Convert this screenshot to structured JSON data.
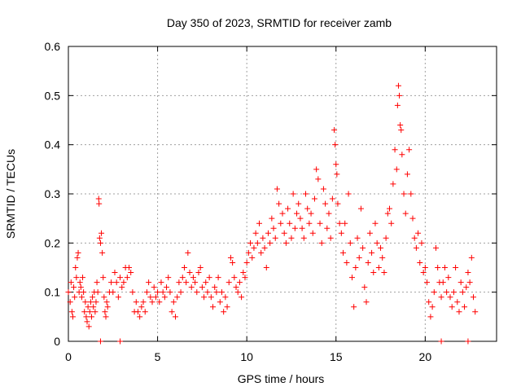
{
  "chart_data": {
    "type": "scatter",
    "title": "Day 350 of 2023, SRMTID for receiver zamb",
    "xlabel": "GPS time / hours",
    "ylabel": "SRMTID / TECUs",
    "xlim": [
      0,
      24
    ],
    "ylim": [
      0,
      0.6
    ],
    "xticks": [
      0,
      5,
      10,
      15,
      20
    ],
    "yticks": [
      0,
      0.1,
      0.2,
      0.3,
      0.4,
      0.5,
      0.6
    ],
    "grid": true,
    "marker": "+",
    "color": "#ff0000",
    "series": [
      {
        "name": "SRMTID",
        "points": [
          [
            0.0,
            0.1
          ],
          [
            0.1,
            0.08
          ],
          [
            0.15,
            0.12
          ],
          [
            0.2,
            0.06
          ],
          [
            0.25,
            0.05
          ],
          [
            0.3,
            0.11
          ],
          [
            0.35,
            0.09
          ],
          [
            0.4,
            0.15
          ],
          [
            0.45,
            0.13
          ],
          [
            0.5,
            0.17
          ],
          [
            0.55,
            0.18
          ],
          [
            0.6,
            0.1
          ],
          [
            0.65,
            0.12
          ],
          [
            0.7,
            0.11
          ],
          [
            0.75,
            0.09
          ],
          [
            0.8,
            0.13
          ],
          [
            0.85,
            0.1
          ],
          [
            0.9,
            0.06
          ],
          [
            0.95,
            0.08
          ],
          [
            1.0,
            0.05
          ],
          [
            1.05,
            0.04
          ],
          [
            1.1,
            0.07
          ],
          [
            1.15,
            0.03
          ],
          [
            1.2,
            0.06
          ],
          [
            1.25,
            0.08
          ],
          [
            1.3,
            0.05
          ],
          [
            1.35,
            0.09
          ],
          [
            1.4,
            0.07
          ],
          [
            1.45,
            0.1
          ],
          [
            1.5,
            0.06
          ],
          [
            1.55,
            0.08
          ],
          [
            1.6,
            0.12
          ],
          [
            1.65,
            0.1
          ],
          [
            1.7,
            0.29
          ],
          [
            1.72,
            0.28
          ],
          [
            1.75,
            0.21
          ],
          [
            1.8,
            0.2
          ],
          [
            1.85,
            0.22
          ],
          [
            1.9,
            0.18
          ],
          [
            1.95,
            0.13
          ],
          [
            2.0,
            0.09
          ],
          [
            2.05,
            0.06
          ],
          [
            2.1,
            0.05
          ],
          [
            2.15,
            0.08
          ],
          [
            2.2,
            0.07
          ],
          [
            2.3,
            0.1
          ],
          [
            2.4,
            0.12
          ],
          [
            2.5,
            0.1
          ],
          [
            2.6,
            0.14
          ],
          [
            2.7,
            0.12
          ],
          [
            2.8,
            0.09
          ],
          [
            2.9,
            0.13
          ],
          [
            3.0,
            0.11
          ],
          [
            3.1,
            0.12
          ],
          [
            3.2,
            0.15
          ],
          [
            3.3,
            0.13
          ],
          [
            3.4,
            0.15
          ],
          [
            3.5,
            0.14
          ],
          [
            3.6,
            0.1
          ],
          [
            3.7,
            0.06
          ],
          [
            3.8,
            0.08
          ],
          [
            3.9,
            0.06
          ],
          [
            4.0,
            0.05
          ],
          [
            4.1,
            0.07
          ],
          [
            4.2,
            0.08
          ],
          [
            4.3,
            0.06
          ],
          [
            4.4,
            0.1
          ],
          [
            4.5,
            0.12
          ],
          [
            4.6,
            0.09
          ],
          [
            4.7,
            0.08
          ],
          [
            4.8,
            0.11
          ],
          [
            4.9,
            0.09
          ],
          [
            5.0,
            0.1
          ],
          [
            5.1,
            0.08
          ],
          [
            5.2,
            0.12
          ],
          [
            5.3,
            0.1
          ],
          [
            5.4,
            0.09
          ],
          [
            5.5,
            0.11
          ],
          [
            5.6,
            0.13
          ],
          [
            5.7,
            0.1
          ],
          [
            5.8,
            0.06
          ],
          [
            5.9,
            0.08
          ],
          [
            6.0,
            0.05
          ],
          [
            6.1,
            0.09
          ],
          [
            6.2,
            0.12
          ],
          [
            6.3,
            0.1
          ],
          [
            6.4,
            0.13
          ],
          [
            6.5,
            0.15
          ],
          [
            6.6,
            0.12
          ],
          [
            6.7,
            0.18
          ],
          [
            6.8,
            0.14
          ],
          [
            6.9,
            0.11
          ],
          [
            7.0,
            0.13
          ],
          [
            7.1,
            0.12
          ],
          [
            7.2,
            0.1
          ],
          [
            7.3,
            0.14
          ],
          [
            7.4,
            0.15
          ],
          [
            7.5,
            0.11
          ],
          [
            7.6,
            0.09
          ],
          [
            7.7,
            0.12
          ],
          [
            7.8,
            0.1
          ],
          [
            7.9,
            0.13
          ],
          [
            8.0,
            0.09
          ],
          [
            8.1,
            0.07
          ],
          [
            8.2,
            0.11
          ],
          [
            8.3,
            0.1
          ],
          [
            8.4,
            0.13
          ],
          [
            8.5,
            0.08
          ],
          [
            8.6,
            0.1
          ],
          [
            8.7,
            0.06
          ],
          [
            8.8,
            0.09
          ],
          [
            8.9,
            0.07
          ],
          [
            9.0,
            0.12
          ],
          [
            9.1,
            0.17
          ],
          [
            9.2,
            0.16
          ],
          [
            9.3,
            0.13
          ],
          [
            9.4,
            0.11
          ],
          [
            9.5,
            0.1
          ],
          [
            9.6,
            0.12
          ],
          [
            9.7,
            0.09
          ],
          [
            9.8,
            0.14
          ],
          [
            9.9,
            0.13
          ],
          [
            10.0,
            0.16
          ],
          [
            10.1,
            0.18
          ],
          [
            10.2,
            0.2
          ],
          [
            10.3,
            0.17
          ],
          [
            10.4,
            0.19
          ],
          [
            10.5,
            0.22
          ],
          [
            10.6,
            0.2
          ],
          [
            10.7,
            0.24
          ],
          [
            10.8,
            0.18
          ],
          [
            10.9,
            0.21
          ],
          [
            11.0,
            0.19
          ],
          [
            11.1,
            0.15
          ],
          [
            11.2,
            0.22
          ],
          [
            11.3,
            0.2
          ],
          [
            11.4,
            0.25
          ],
          [
            11.5,
            0.23
          ],
          [
            11.6,
            0.21
          ],
          [
            11.7,
            0.31
          ],
          [
            11.8,
            0.28
          ],
          [
            11.9,
            0.24
          ],
          [
            12.0,
            0.26
          ],
          [
            12.1,
            0.22
          ],
          [
            12.2,
            0.2
          ],
          [
            12.3,
            0.27
          ],
          [
            12.4,
            0.24
          ],
          [
            12.5,
            0.21
          ],
          [
            12.6,
            0.3
          ],
          [
            12.7,
            0.23
          ],
          [
            12.8,
            0.26
          ],
          [
            12.9,
            0.28
          ],
          [
            13.0,
            0.25
          ],
          [
            13.1,
            0.23
          ],
          [
            13.2,
            0.21
          ],
          [
            13.3,
            0.3
          ],
          [
            13.4,
            0.27
          ],
          [
            13.5,
            0.24
          ],
          [
            13.6,
            0.26
          ],
          [
            13.7,
            0.22
          ],
          [
            13.8,
            0.29
          ],
          [
            13.9,
            0.35
          ],
          [
            14.0,
            0.33
          ],
          [
            14.1,
            0.24
          ],
          [
            14.2,
            0.2
          ],
          [
            14.3,
            0.31
          ],
          [
            14.4,
            0.28
          ],
          [
            14.5,
            0.23
          ],
          [
            14.6,
            0.26
          ],
          [
            14.7,
            0.21
          ],
          [
            14.8,
            0.29
          ],
          [
            14.9,
            0.43
          ],
          [
            14.95,
            0.4
          ],
          [
            15.0,
            0.36
          ],
          [
            15.05,
            0.34
          ],
          [
            15.1,
            0.28
          ],
          [
            15.2,
            0.24
          ],
          [
            15.3,
            0.22
          ],
          [
            15.4,
            0.18
          ],
          [
            15.5,
            0.24
          ],
          [
            15.6,
            0.16
          ],
          [
            15.7,
            0.3
          ],
          [
            15.8,
            0.2
          ],
          [
            15.9,
            0.13
          ],
          [
            16.0,
            0.07
          ],
          [
            16.1,
            0.15
          ],
          [
            16.2,
            0.21
          ],
          [
            16.3,
            0.17
          ],
          [
            16.4,
            0.27
          ],
          [
            16.5,
            0.19
          ],
          [
            16.6,
            0.11
          ],
          [
            16.7,
            0.08
          ],
          [
            16.8,
            0.16
          ],
          [
            16.9,
            0.22
          ],
          [
            17.0,
            0.18
          ],
          [
            17.1,
            0.14
          ],
          [
            17.2,
            0.24
          ],
          [
            17.3,
            0.2
          ],
          [
            17.4,
            0.15
          ],
          [
            17.5,
            0.19
          ],
          [
            17.6,
            0.17
          ],
          [
            17.7,
            0.14
          ],
          [
            17.8,
            0.21
          ],
          [
            17.9,
            0.26
          ],
          [
            18.0,
            0.27
          ],
          [
            18.1,
            0.24
          ],
          [
            18.2,
            0.32
          ],
          [
            18.3,
            0.39
          ],
          [
            18.4,
            0.35
          ],
          [
            18.45,
            0.48
          ],
          [
            18.5,
            0.52
          ],
          [
            18.55,
            0.5
          ],
          [
            18.6,
            0.44
          ],
          [
            18.65,
            0.43
          ],
          [
            18.7,
            0.38
          ],
          [
            18.8,
            0.3
          ],
          [
            18.9,
            0.26
          ],
          [
            19.0,
            0.34
          ],
          [
            19.1,
            0.39
          ],
          [
            19.2,
            0.3
          ],
          [
            19.3,
            0.25
          ],
          [
            19.4,
            0.21
          ],
          [
            19.5,
            0.19
          ],
          [
            19.6,
            0.22
          ],
          [
            19.7,
            0.16
          ],
          [
            19.8,
            0.2
          ],
          [
            19.9,
            0.14
          ],
          [
            20.0,
            0.15
          ],
          [
            20.1,
            0.12
          ],
          [
            20.2,
            0.08
          ],
          [
            20.3,
            0.05
          ],
          [
            20.4,
            0.07
          ],
          [
            20.5,
            0.1
          ],
          [
            20.6,
            0.19
          ],
          [
            20.7,
            0.15
          ],
          [
            20.8,
            0.12
          ],
          [
            20.9,
            0.09
          ],
          [
            21.0,
            0.12
          ],
          [
            21.1,
            0.15
          ],
          [
            21.2,
            0.1
          ],
          [
            21.3,
            0.13
          ],
          [
            21.4,
            0.09
          ],
          [
            21.5,
            0.07
          ],
          [
            21.6,
            0.1
          ],
          [
            21.7,
            0.15
          ],
          [
            21.8,
            0.08
          ],
          [
            21.9,
            0.06
          ],
          [
            22.0,
            0.12
          ],
          [
            22.1,
            0.1
          ],
          [
            22.2,
            0.07
          ],
          [
            22.3,
            0.11
          ],
          [
            22.4,
            0.14
          ],
          [
            22.5,
            0.12
          ],
          [
            22.6,
            0.17
          ],
          [
            22.7,
            0.09
          ],
          [
            22.8,
            0.06
          ],
          [
            1.8,
            0.0
          ],
          [
            2.9,
            0.0
          ],
          [
            20.9,
            0.0
          ],
          [
            22.4,
            0.0
          ]
        ]
      }
    ]
  }
}
